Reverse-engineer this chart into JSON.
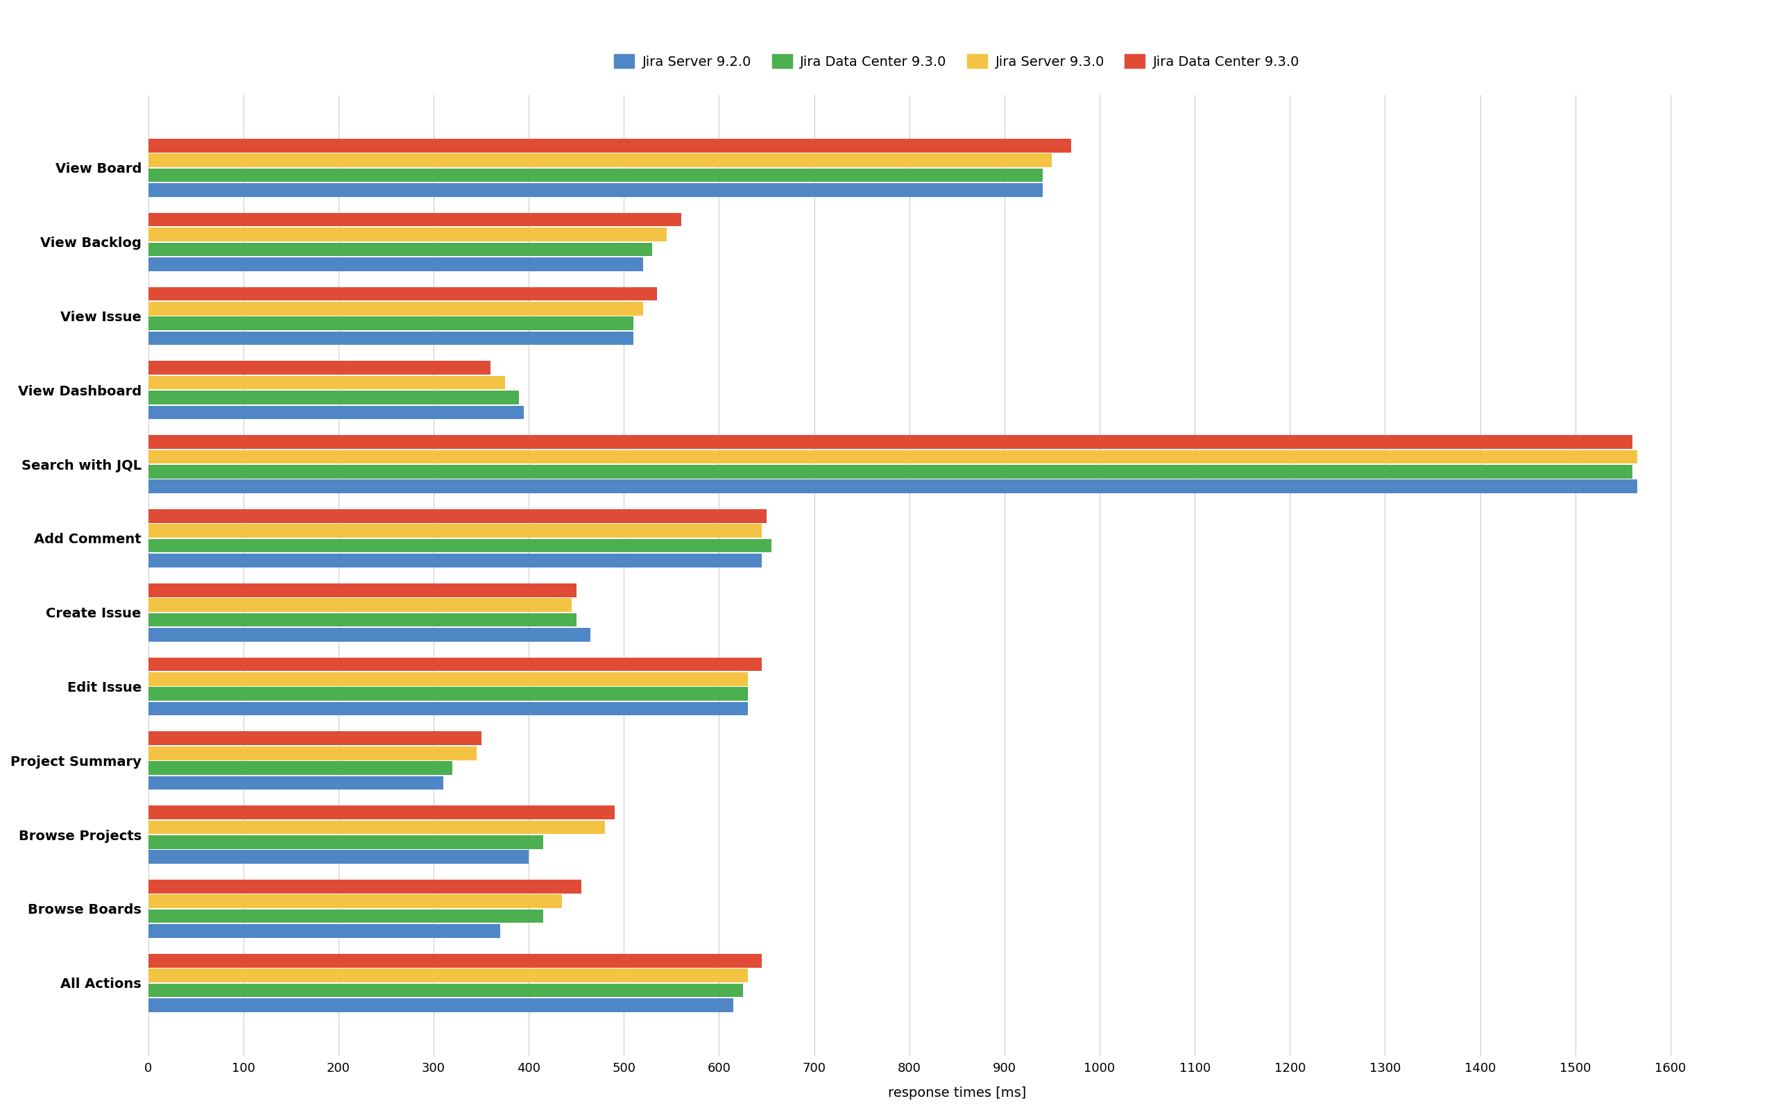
{
  "categories": [
    "View Board",
    "View Backlog",
    "View Issue",
    "View Dashboard",
    "Search with JQL",
    "Add Comment",
    "Create Issue",
    "Edit Issue",
    "Project Summary",
    "Browse Projects",
    "Browse Boards",
    "All Actions"
  ],
  "series": [
    {
      "label": "Jira Server 9.2.0",
      "color": "#4F86C6",
      "values": [
        940,
        520,
        510,
        395,
        1565,
        645,
        465,
        630,
        310,
        400,
        370,
        615
      ]
    },
    {
      "label": "Jira Data Center 9.3.0",
      "color": "#4CAF50",
      "values": [
        940,
        530,
        510,
        390,
        1560,
        655,
        450,
        630,
        320,
        415,
        415,
        625
      ]
    },
    {
      "label": "Jira Server 9.3.0",
      "color": "#F5C344",
      "values": [
        950,
        545,
        520,
        375,
        1565,
        645,
        445,
        630,
        345,
        480,
        435,
        630
      ]
    },
    {
      "label": "Jira Data Center 9.3.0",
      "color": "#E04B35",
      "values": [
        970,
        560,
        535,
        360,
        1560,
        650,
        450,
        645,
        350,
        490,
        455,
        645
      ]
    }
  ],
  "xlabel": "response times [ms]",
  "xlim": [
    0,
    1700
  ],
  "xticks": [
    0,
    100,
    200,
    300,
    400,
    500,
    600,
    700,
    800,
    900,
    1000,
    1100,
    1200,
    1300,
    1400,
    1500,
    1600
  ],
  "background_color": "#FFFFFF",
  "grid_color": "#CCCCCC",
  "bar_height": 0.2,
  "label_fontsize": 14,
  "tick_fontsize": 13,
  "legend_fontsize": 14
}
